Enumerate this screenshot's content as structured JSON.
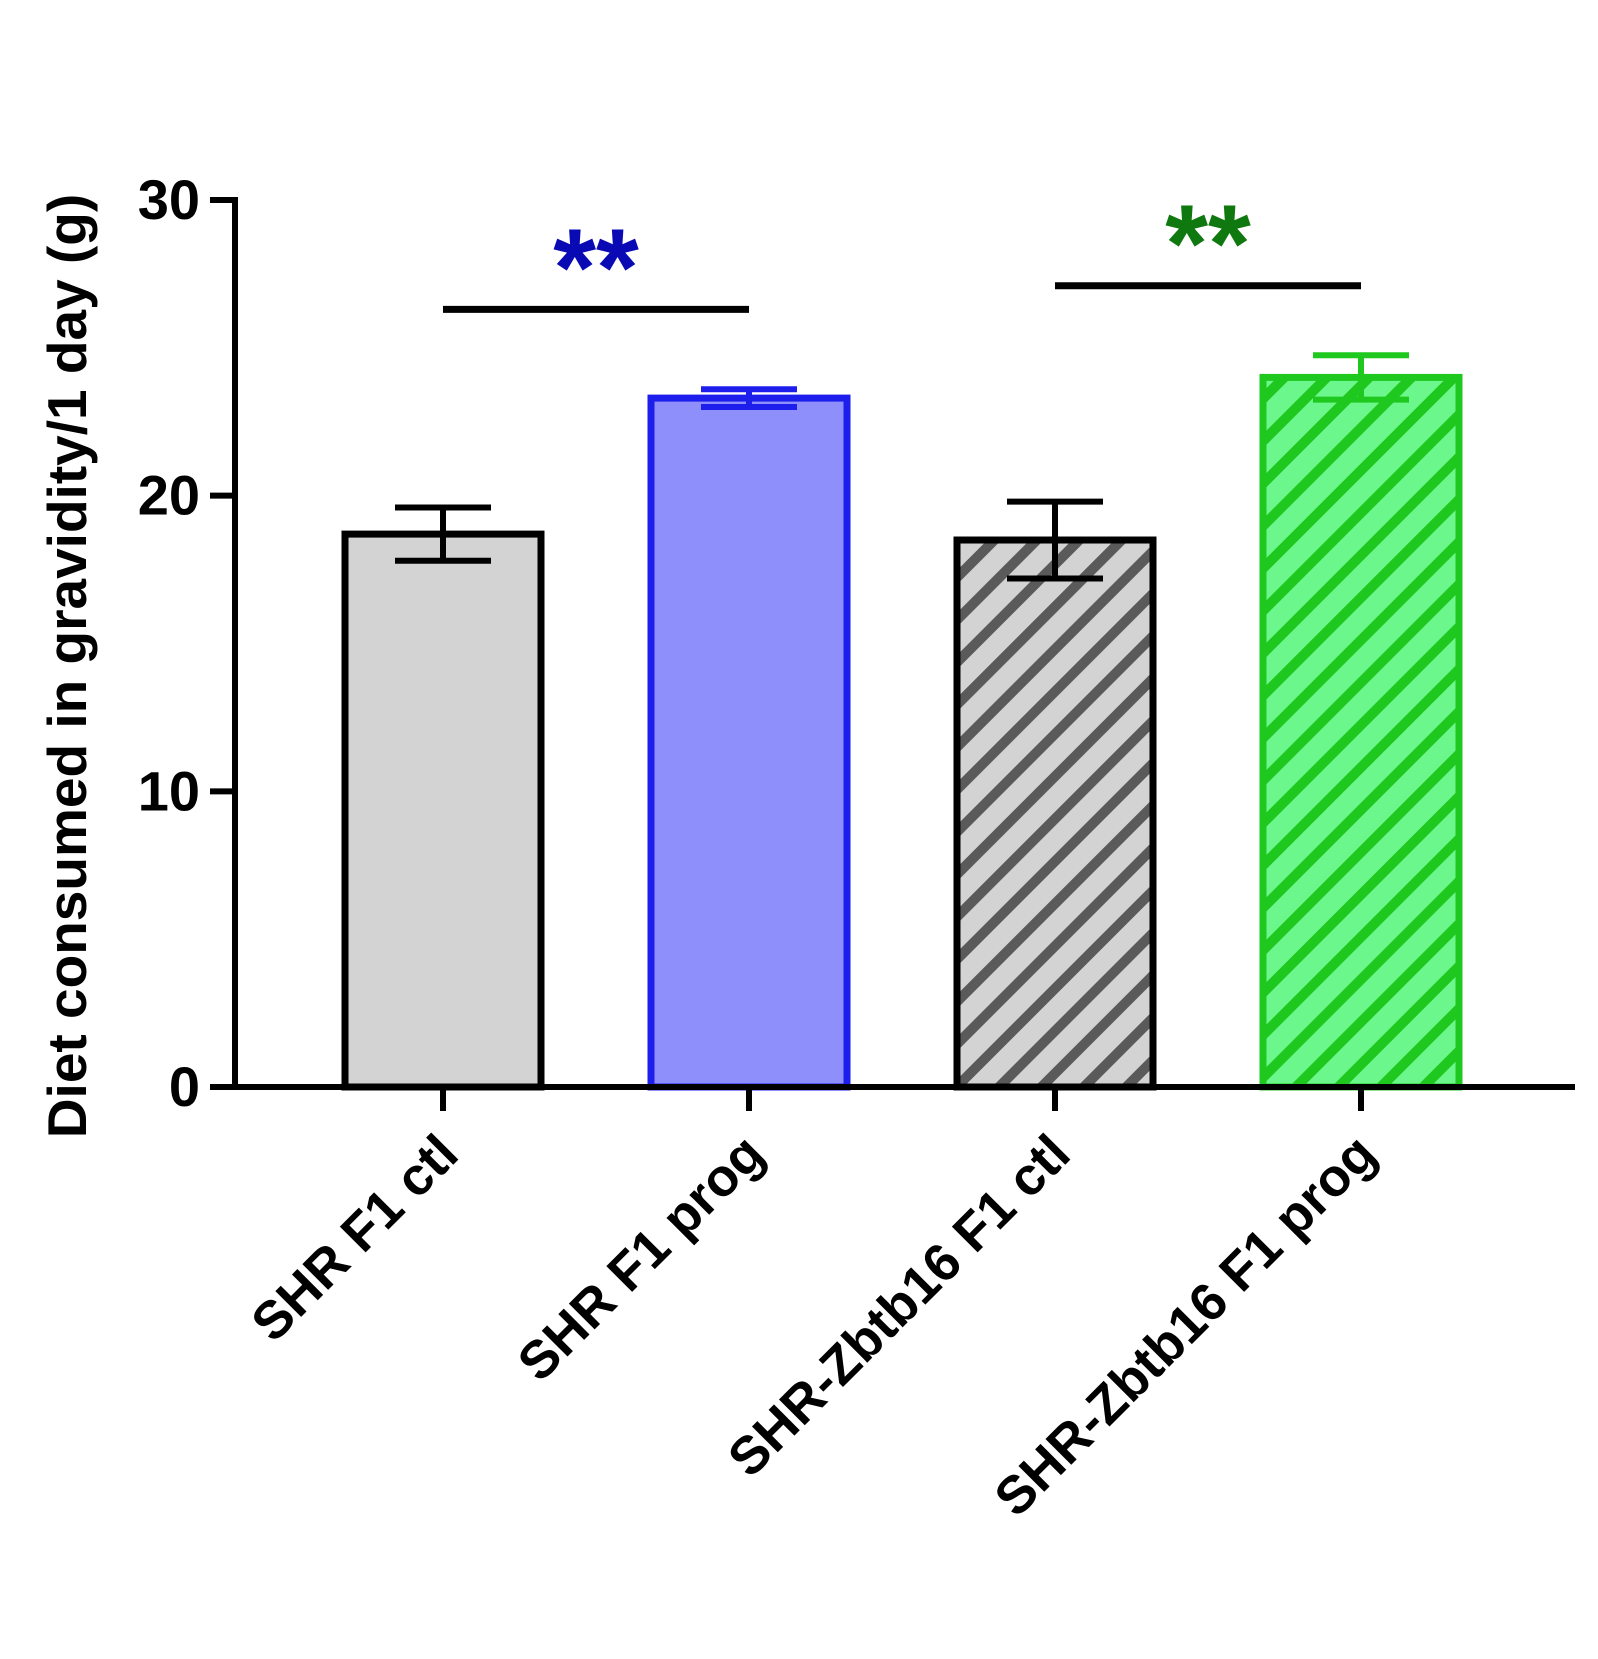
{
  "chart_data": {
    "type": "bar",
    "ylabel": "Diet consumed in gravidity/1 day (g)",
    "ylim": [
      0,
      30
    ],
    "yticks": [
      0,
      10,
      20,
      30
    ],
    "grid": false,
    "categories": [
      "SHR F1 ctl",
      "SHR F1 prog",
      "SHR-Zbtb16 F1 ctl",
      "SHR-Zbtb16 F1 prog"
    ],
    "series": [
      {
        "values": [
          18.7,
          23.3,
          18.5,
          24.0
        ],
        "error": [
          0.9,
          0.3,
          1.3,
          0.75
        ]
      }
    ],
    "bar_styles": [
      {
        "fill": "#d3d3d3",
        "stroke": "#000000",
        "pattern": "none"
      },
      {
        "fill": "#8f8ffc",
        "stroke": "#1e1eec",
        "pattern": "none"
      },
      {
        "fill": "#d3d3d3",
        "stroke": "#000000",
        "pattern": "diagonal",
        "hatch_color": "#5a5a5a"
      },
      {
        "fill": "#6cf78c",
        "stroke": "#1ec81e",
        "pattern": "diagonal",
        "hatch_color": "#1ec81e"
      }
    ],
    "annotations": [
      {
        "from": 0,
        "to": 1,
        "text": "**",
        "color": "#0a0ab4",
        "y": 26.3
      },
      {
        "from": 2,
        "to": 3,
        "text": "**",
        "color": "#0f780f",
        "y": 27.1
      }
    ]
  }
}
